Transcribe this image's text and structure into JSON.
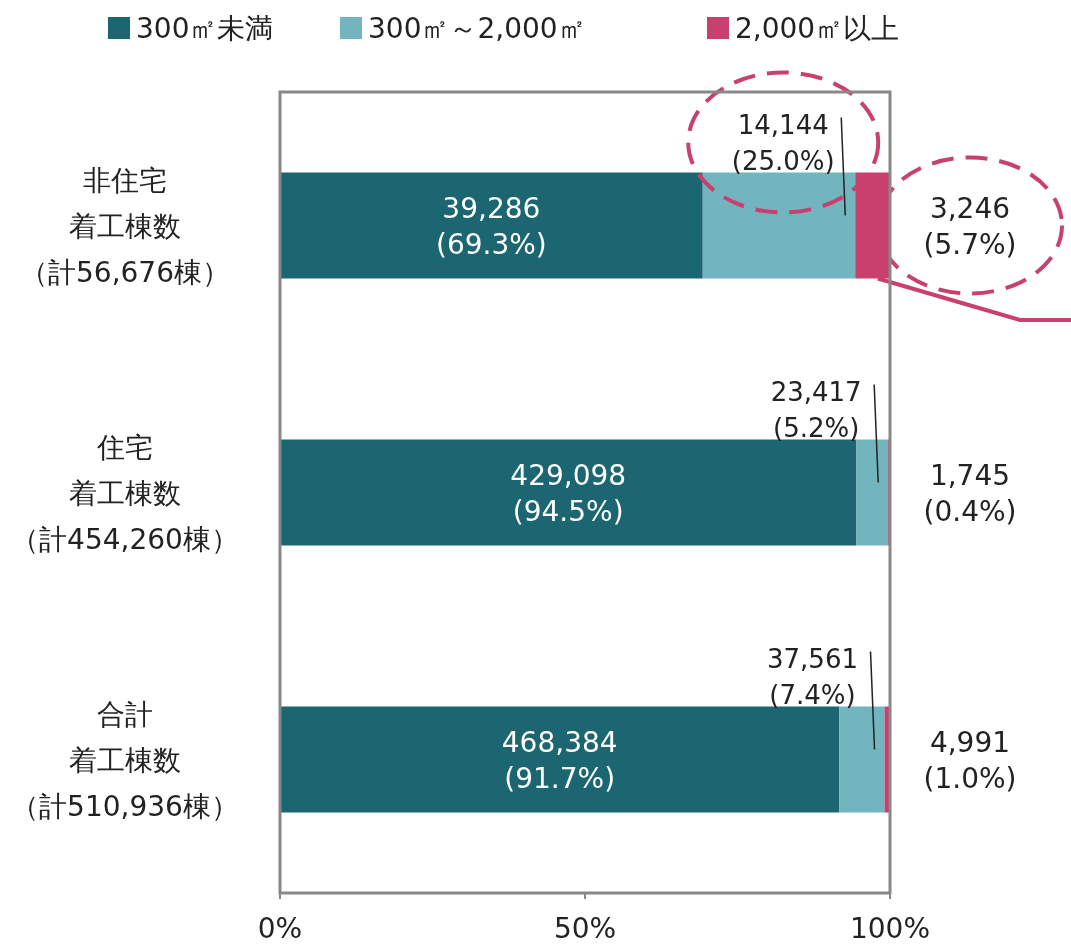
{
  "chart_data": {
    "type": "bar",
    "orientation": "horizontal",
    "stacked": true,
    "categories": [
      "非住宅着工棟数（計56,676棟）",
      "住宅着工棟数（計454,260棟）",
      "合計着工棟数（計510,936棟）"
    ],
    "series": [
      {
        "name": "300㎡未満",
        "color": "#1b6670",
        "values": [
          69.3,
          94.5,
          91.7
        ],
        "value_labels": [
          "39,286\n(69.3%)",
          "429,098\n(94.5%)",
          "468,384\n(91.7%)"
        ]
      },
      {
        "name": "300㎡～2,000㎡",
        "color": "#72b5bf",
        "values": [
          25.0,
          5.2,
          7.4
        ],
        "value_labels": [
          "14,144\n(25.0%)",
          "23,417\n(5.2%)",
          "37,561\n(7.4%)"
        ]
      },
      {
        "name": "2,000㎡以上",
        "color": "#c8416e",
        "values": [
          5.7,
          0.4,
          1.0
        ],
        "value_labels": [
          "3,246\n(5.7%)",
          "1,745\n(0.4%)",
          "4,991\n(1.0%)"
        ]
      }
    ],
    "xlim": [
      0,
      100
    ],
    "xticks": [
      {
        "value": 0,
        "label": "0%"
      },
      {
        "value": 50,
        "label": "50%"
      },
      {
        "value": 100,
        "label": "100%"
      }
    ],
    "legend": "top",
    "grid": false
  }
}
